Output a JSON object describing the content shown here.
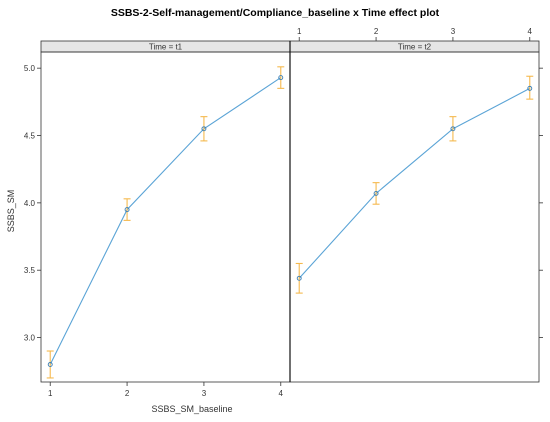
{
  "chart_data": {
    "type": "line",
    "title": "SSBS-2-Self-management/Compliance_baseline x Time effect plot",
    "xlabel": "SSBS_SM_baseline",
    "ylabel": "SSBS_SM",
    "x_ticks": [
      "1",
      "2",
      "3",
      "4"
    ],
    "y_ticks": [
      "3.0",
      "3.5",
      "4.0",
      "4.5",
      "5.0"
    ],
    "xlim": [
      0.88,
      4.12
    ],
    "ylim": [
      2.67,
      5.12
    ],
    "grid": false,
    "line_color": "#5ba4d6",
    "errorbar_color": "#f5b94e",
    "strip_color": "#e6e6e6",
    "panels": [
      {
        "strip_label": "Time = t1",
        "x": [
          1,
          2,
          3,
          4
        ],
        "y": [
          2.8,
          3.95,
          4.55,
          4.93
        ],
        "lower": [
          2.7,
          3.87,
          4.46,
          4.85
        ],
        "upper": [
          2.9,
          4.03,
          4.64,
          5.01
        ]
      },
      {
        "strip_label": "Time = t2",
        "x": [
          1,
          2,
          3,
          4
        ],
        "y": [
          3.44,
          4.07,
          4.55,
          4.85
        ],
        "lower": [
          3.33,
          3.99,
          4.46,
          4.77
        ],
        "upper": [
          3.55,
          4.15,
          4.64,
          4.94
        ]
      }
    ]
  }
}
